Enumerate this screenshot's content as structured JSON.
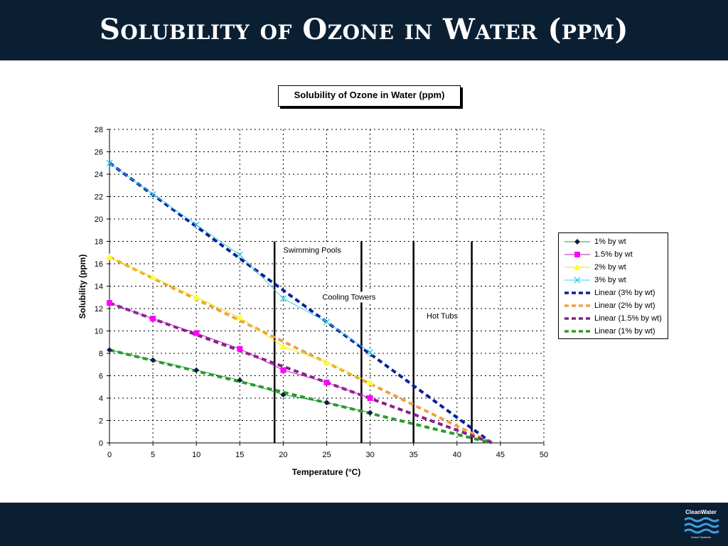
{
  "slide": {
    "title": "Solubility of Ozone in Water (ppm)",
    "logo_text": "CleanWater",
    "logo_subtext": "Ozone Systems",
    "band_color": "#0b1f33"
  },
  "chart_data": {
    "type": "line",
    "title": "Solubility of Ozone in Water (ppm)",
    "xlabel": "Temperature (°C)",
    "ylabel": "Solubility (ppm)",
    "xlim": [
      0,
      50
    ],
    "ylim": [
      0,
      28
    ],
    "x_ticks": [
      "0",
      "5",
      "10",
      "15",
      "20",
      "25",
      "30",
      "35",
      "40",
      "45",
      "50"
    ],
    "y_ticks": [
      "0",
      "2",
      "4",
      "6",
      "8",
      "10",
      "12",
      "14",
      "16",
      "18",
      "20",
      "22",
      "24",
      "26",
      "28"
    ],
    "grid": true,
    "legend_position": "right",
    "series": [
      {
        "name": "1% by wt",
        "x": [
          0,
          5,
          10,
          15,
          20,
          25,
          30
        ],
        "values": [
          8.3,
          7.4,
          6.5,
          5.6,
          4.3,
          3.6,
          2.7
        ],
        "color": "#1f9c3a",
        "marker": "diamond",
        "marker_color": "#0b1f40"
      },
      {
        "name": "1.5% by wt",
        "x": [
          0,
          5,
          10,
          15,
          20,
          25,
          30
        ],
        "values": [
          12.5,
          11.1,
          9.8,
          8.4,
          6.5,
          5.4,
          4.0
        ],
        "color": "#b020b0",
        "marker": "square",
        "marker_color": "#ff00ff"
      },
      {
        "name": "2% by wt",
        "x": [
          0,
          5,
          10,
          15,
          20,
          25,
          30
        ],
        "values": [
          16.6,
          14.8,
          13.0,
          11.2,
          8.6,
          7.2,
          5.4
        ],
        "color": "#e8e800",
        "marker": "triangle",
        "marker_color": "#ffff33"
      },
      {
        "name": "3% by wt",
        "x": [
          0,
          5,
          10,
          15,
          20,
          25,
          30
        ],
        "values": [
          25.0,
          22.2,
          19.5,
          16.8,
          12.9,
          10.8,
          8.1
        ],
        "color": "#30d0e8",
        "marker": "x",
        "marker_color": "#30d0e8"
      },
      {
        "name": "Linear (3% by wt)",
        "x": [
          0,
          44
        ],
        "values": [
          25.0,
          0
        ],
        "color": "#0a1f9c",
        "dashed": true
      },
      {
        "name": "Linear (2% by wt)",
        "x": [
          0,
          44
        ],
        "values": [
          16.6,
          0
        ],
        "color": "#f0a040",
        "dashed": true
      },
      {
        "name": "Linear (1.5% by wt)",
        "x": [
          0,
          44
        ],
        "values": [
          12.5,
          0
        ],
        "color": "#8a1f8a",
        "dashed": true
      },
      {
        "name": "Linear (1% by wt)",
        "x": [
          0,
          44
        ],
        "values": [
          8.3,
          0
        ],
        "color": "#2c9a2c",
        "dashed": true
      }
    ],
    "annotations": [
      {
        "label": "Swimming Pools",
        "x": 19,
        "y_top": 18,
        "text_x": 20,
        "text_y": 17
      },
      {
        "label": "Cooling Towers",
        "x": 29,
        "y_top": 18,
        "text_x": 24.5,
        "text_y": 12.8
      },
      {
        "label": "Hot Tubs",
        "x": 35,
        "y_top": 18,
        "text_x": 36.5,
        "text_y": 11.1
      },
      {
        "label": "",
        "x": 41.7,
        "y_top": 18
      }
    ]
  }
}
